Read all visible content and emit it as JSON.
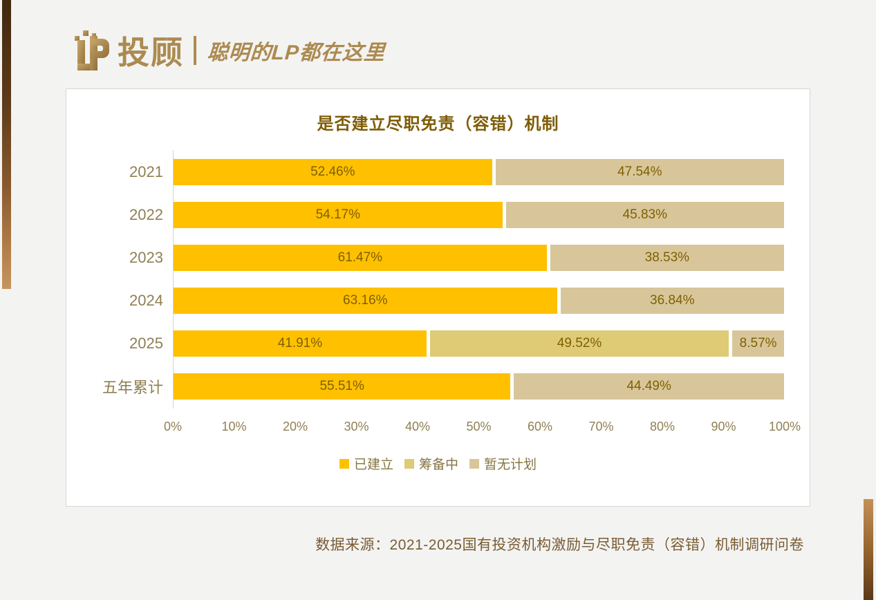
{
  "logo": {
    "brand": "投顾",
    "tagline": "聪明的LP都在这里",
    "gold_color": "#ac8a4f"
  },
  "chart_data": {
    "type": "bar",
    "orientation": "horizontal",
    "stacked": true,
    "title": "是否建立尽职免责（容错）机制",
    "categories": [
      "2021",
      "2022",
      "2023",
      "2024",
      "2025",
      "五年累计"
    ],
    "series": [
      {
        "name": "已建立",
        "color": "#FFC000",
        "values": [
          52.46,
          54.17,
          61.47,
          63.16,
          41.91,
          55.51
        ]
      },
      {
        "name": "筹备中",
        "color": "#DFCA75",
        "values": [
          0,
          0,
          0,
          0,
          49.52,
          0
        ]
      },
      {
        "name": "暂无计划",
        "color": "#D8C69A",
        "values": [
          47.54,
          45.83,
          38.53,
          36.84,
          8.57,
          44.49
        ]
      }
    ],
    "xlim": [
      0,
      100
    ],
    "x_ticks": [
      "0%",
      "10%",
      "20%",
      "30%",
      "40%",
      "50%",
      "60%",
      "70%",
      "80%",
      "90%",
      "100%"
    ],
    "legend_position": "bottom",
    "data_label_format": "0.00%",
    "data_label_color": "#7f6000",
    "grid": false
  },
  "source_note": "数据来源：2021-2025国有投资机构激励与尽职免责（容错）机制调研问卷"
}
